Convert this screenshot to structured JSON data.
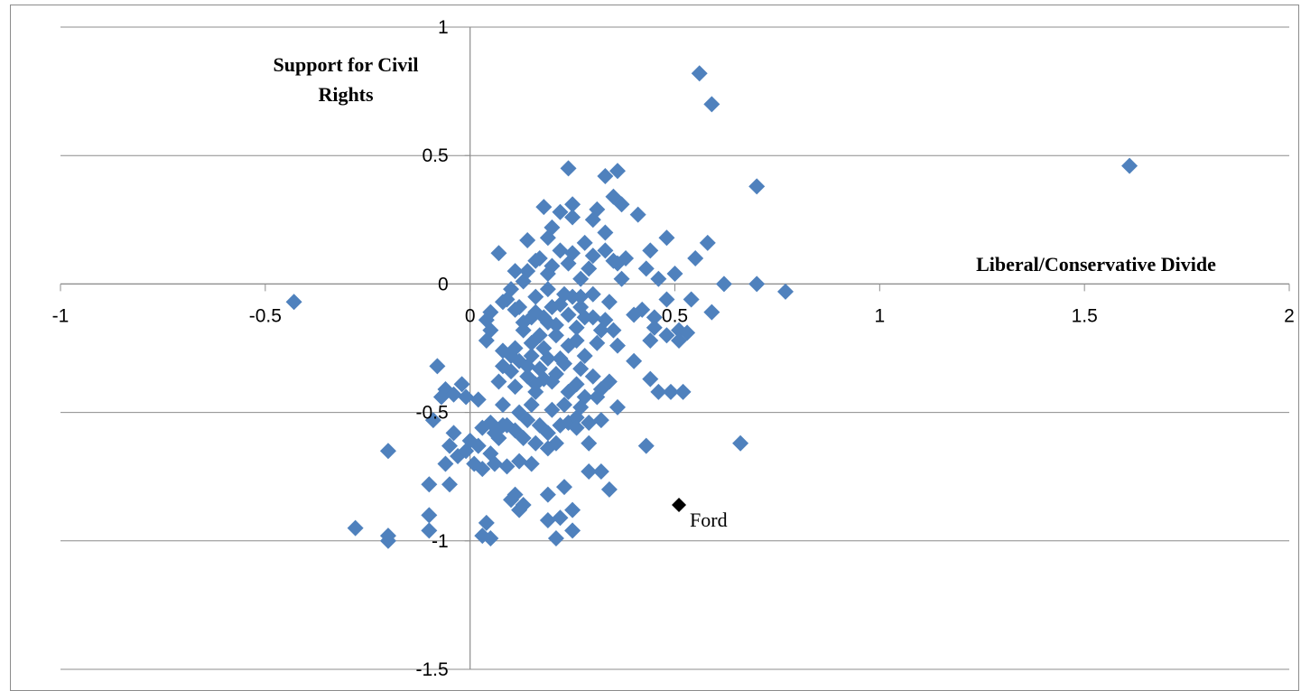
{
  "chart_data": {
    "type": "scatter",
    "ylabel_lines": [
      "Support for Civil",
      "Rights"
    ],
    "xlabel": "Liberal/Conservative Divide",
    "xlim": [
      -1,
      2
    ],
    "ylim": [
      -1.5,
      1
    ],
    "x_ticks": [
      "-1",
      "-0.5",
      "0",
      "0.5",
      "1",
      "1.5",
      "2"
    ],
    "y_ticks": [
      "1",
      "0.5",
      "0",
      "-0.5",
      "-1",
      "-1.5"
    ],
    "grid": "horizontal",
    "colors": {
      "points": "#4f81bd",
      "highlight": "#000000",
      "grid": "#8c8c8c"
    },
    "highlight": {
      "label": "Ford",
      "x": 0.51,
      "y": -0.86
    },
    "points": [
      [
        0.56,
        0.82
      ],
      [
        0.59,
        0.7
      ],
      [
        1.61,
        0.46
      ],
      [
        0.7,
        0.38
      ],
      [
        -0.43,
        -0.07
      ],
      [
        0.24,
        0.45
      ],
      [
        0.33,
        0.42
      ],
      [
        0.36,
        0.44
      ],
      [
        0.25,
        0.31
      ],
      [
        0.31,
        0.29
      ],
      [
        0.35,
        0.34
      ],
      [
        0.18,
        0.3
      ],
      [
        0.22,
        0.28
      ],
      [
        0.25,
        0.26
      ],
      [
        0.37,
        0.31
      ],
      [
        0.41,
        0.27
      ],
      [
        0.3,
        0.25
      ],
      [
        0.2,
        0.22
      ],
      [
        0.19,
        0.18
      ],
      [
        0.14,
        0.17
      ],
      [
        0.07,
        0.12
      ],
      [
        0.33,
        0.2
      ],
      [
        0.28,
        0.16
      ],
      [
        0.33,
        0.13
      ],
      [
        0.38,
        0.1
      ],
      [
        0.44,
        0.13
      ],
      [
        0.48,
        0.18
      ],
      [
        0.58,
        0.16
      ],
      [
        0.55,
        0.1
      ],
      [
        0.22,
        0.13
      ],
      [
        0.17,
        0.1
      ],
      [
        0.14,
        0.05
      ],
      [
        0.11,
        0.05
      ],
      [
        0.24,
        0.08
      ],
      [
        0.29,
        0.06
      ],
      [
        0.37,
        0.02
      ],
      [
        0.43,
        0.06
      ],
      [
        0.46,
        0.02
      ],
      [
        0.5,
        0.04
      ],
      [
        0.62,
        0.0
      ],
      [
        0.7,
        0.0
      ],
      [
        0.77,
        -0.03
      ],
      [
        0.54,
        -0.06
      ],
      [
        0.48,
        -0.06
      ],
      [
        0.42,
        -0.1
      ],
      [
        0.59,
        -0.11
      ],
      [
        0.45,
        -0.13
      ],
      [
        0.09,
        -0.06
      ],
      [
        0.11,
        -0.1
      ],
      [
        0.15,
        -0.13
      ],
      [
        0.19,
        -0.15
      ],
      [
        0.22,
        -0.08
      ],
      [
        0.25,
        -0.05
      ],
      [
        0.27,
        -0.09
      ],
      [
        0.3,
        -0.13
      ],
      [
        0.33,
        -0.14
      ],
      [
        0.13,
        -0.18
      ],
      [
        0.17,
        -0.2
      ],
      [
        0.21,
        -0.2
      ],
      [
        0.24,
        -0.24
      ],
      [
        0.26,
        -0.22
      ],
      [
        0.04,
        -0.14
      ],
      [
        0.05,
        -0.18
      ],
      [
        0.04,
        -0.22
      ],
      [
        0.11,
        -0.25
      ],
      [
        0.12,
        -0.3
      ],
      [
        0.15,
        -0.28
      ],
      [
        0.19,
        -0.29
      ],
      [
        0.23,
        -0.31
      ],
      [
        0.27,
        -0.33
      ],
      [
        0.3,
        -0.36
      ],
      [
        0.26,
        -0.39
      ],
      [
        0.21,
        -0.35
      ],
      [
        0.18,
        -0.37
      ],
      [
        0.14,
        -0.36
      ],
      [
        0.1,
        -0.34
      ],
      [
        0.08,
        -0.32
      ],
      [
        0.07,
        -0.38
      ],
      [
        0.11,
        -0.4
      ],
      [
        0.16,
        -0.42
      ],
      [
        0.24,
        -0.42
      ],
      [
        0.28,
        -0.44
      ],
      [
        0.32,
        -0.41
      ],
      [
        0.34,
        -0.38
      ],
      [
        0.31,
        -0.23
      ],
      [
        0.35,
        -0.18
      ],
      [
        0.45,
        -0.17
      ],
      [
        0.51,
        -0.18
      ],
      [
        0.48,
        -0.2
      ],
      [
        0.44,
        -0.22
      ],
      [
        0.51,
        -0.22
      ],
      [
        0.53,
        -0.19
      ],
      [
        0.4,
        -0.3
      ],
      [
        0.44,
        -0.37
      ],
      [
        0.46,
        -0.42
      ],
      [
        0.49,
        -0.42
      ],
      [
        0.52,
        -0.42
      ],
      [
        0.36,
        -0.48
      ],
      [
        0.32,
        -0.53
      ],
      [
        0.29,
        -0.54
      ],
      [
        0.24,
        -0.54
      ],
      [
        0.2,
        -0.49
      ],
      [
        0.15,
        -0.47
      ],
      [
        0.12,
        -0.5
      ],
      [
        0.08,
        -0.47
      ],
      [
        0.05,
        -0.54
      ],
      [
        0.03,
        -0.56
      ],
      [
        0.06,
        -0.58
      ],
      [
        0.09,
        -0.55
      ],
      [
        0.13,
        -0.6
      ],
      [
        0.16,
        -0.62
      ],
      [
        0.19,
        -0.64
      ],
      [
        0.21,
        -0.62
      ],
      [
        0.26,
        -0.52
      ],
      [
        0.29,
        -0.62
      ],
      [
        0.43,
        -0.63
      ],
      [
        0.66,
        -0.62
      ],
      [
        -0.08,
        -0.32
      ],
      [
        -0.06,
        -0.41
      ],
      [
        -0.04,
        -0.43
      ],
      [
        -0.02,
        -0.39
      ],
      [
        -0.07,
        -0.44
      ],
      [
        -0.01,
        -0.44
      ],
      [
        0.02,
        -0.45
      ],
      [
        -0.09,
        -0.53
      ],
      [
        -0.05,
        -0.63
      ],
      [
        -0.03,
        -0.67
      ],
      [
        -0.01,
        -0.65
      ],
      [
        0.01,
        -0.7
      ],
      [
        0.03,
        -0.72
      ],
      [
        0.06,
        -0.7
      ],
      [
        0.09,
        -0.71
      ],
      [
        0.12,
        -0.69
      ],
      [
        0.15,
        -0.7
      ],
      [
        -0.06,
        -0.7
      ],
      [
        -0.05,
        -0.78
      ],
      [
        -0.1,
        -0.78
      ],
      [
        -0.2,
        -0.65
      ],
      [
        0.05,
        -0.66
      ],
      [
        0.23,
        -0.79
      ],
      [
        0.34,
        -0.8
      ],
      [
        0.29,
        -0.73
      ],
      [
        0.32,
        -0.73
      ],
      [
        0.11,
        -0.82
      ],
      [
        0.13,
        -0.86
      ],
      [
        0.19,
        -0.82
      ],
      [
        0.12,
        -0.88
      ],
      [
        0.1,
        -0.84
      ],
      [
        0.25,
        -0.88
      ],
      [
        0.19,
        -0.92
      ],
      [
        0.22,
        -0.91
      ],
      [
        0.25,
        -0.96
      ],
      [
        0.21,
        -0.99
      ],
      [
        0.04,
        -0.93
      ],
      [
        0.03,
        -0.98
      ],
      [
        0.05,
        -0.99
      ],
      [
        -0.1,
        -0.9
      ],
      [
        -0.1,
        -0.96
      ],
      [
        -0.28,
        -0.95
      ],
      [
        -0.2,
        -0.98
      ],
      [
        -0.2,
        -1.0
      ],
      [
        0.16,
        -0.05
      ],
      [
        0.19,
        -0.02
      ],
      [
        0.23,
        -0.04
      ],
      [
        0.27,
        -0.05
      ],
      [
        0.12,
        -0.09
      ],
      [
        0.16,
        -0.11
      ],
      [
        0.2,
        -0.09
      ],
      [
        0.24,
        -0.12
      ],
      [
        0.28,
        -0.13
      ],
      [
        0.13,
        -0.15
      ],
      [
        0.18,
        -0.13
      ],
      [
        0.21,
        -0.16
      ],
      [
        0.26,
        -0.17
      ],
      [
        0.3,
        -0.04
      ],
      [
        0.34,
        -0.07
      ],
      [
        0.36,
        0.08
      ],
      [
        0.3,
        0.11
      ],
      [
        0.27,
        0.02
      ],
      [
        0.19,
        0.04
      ],
      [
        0.16,
        0.09
      ],
      [
        0.2,
        0.07
      ],
      [
        0.25,
        0.12
      ],
      [
        0.35,
        0.09
      ],
      [
        0.13,
        0.01
      ],
      [
        0.1,
        -0.02
      ],
      [
        0.08,
        -0.07
      ],
      [
        0.05,
        -0.11
      ],
      [
        0.15,
        -0.23
      ],
      [
        0.18,
        -0.25
      ],
      [
        0.14,
        -0.32
      ],
      [
        0.17,
        -0.33
      ],
      [
        0.22,
        -0.29
      ],
      [
        0.1,
        -0.28
      ],
      [
        0.08,
        -0.26
      ],
      [
        0.16,
        -0.39
      ],
      [
        0.2,
        -0.38
      ],
      [
        0.23,
        -0.47
      ],
      [
        0.27,
        -0.48
      ],
      [
        0.31,
        -0.44
      ],
      [
        0.17,
        -0.55
      ],
      [
        0.19,
        -0.58
      ],
      [
        0.22,
        -0.55
      ],
      [
        0.26,
        -0.56
      ],
      [
        0.14,
        -0.53
      ],
      [
        0.11,
        -0.57
      ],
      [
        0.08,
        -0.55
      ],
      [
        0.07,
        -0.6
      ],
      [
        0.02,
        -0.63
      ],
      [
        0.0,
        -0.61
      ],
      [
        -0.04,
        -0.58
      ],
      [
        0.28,
        -0.28
      ],
      [
        0.32,
        -0.18
      ],
      [
        0.36,
        -0.24
      ],
      [
        0.4,
        -0.12
      ]
    ]
  }
}
